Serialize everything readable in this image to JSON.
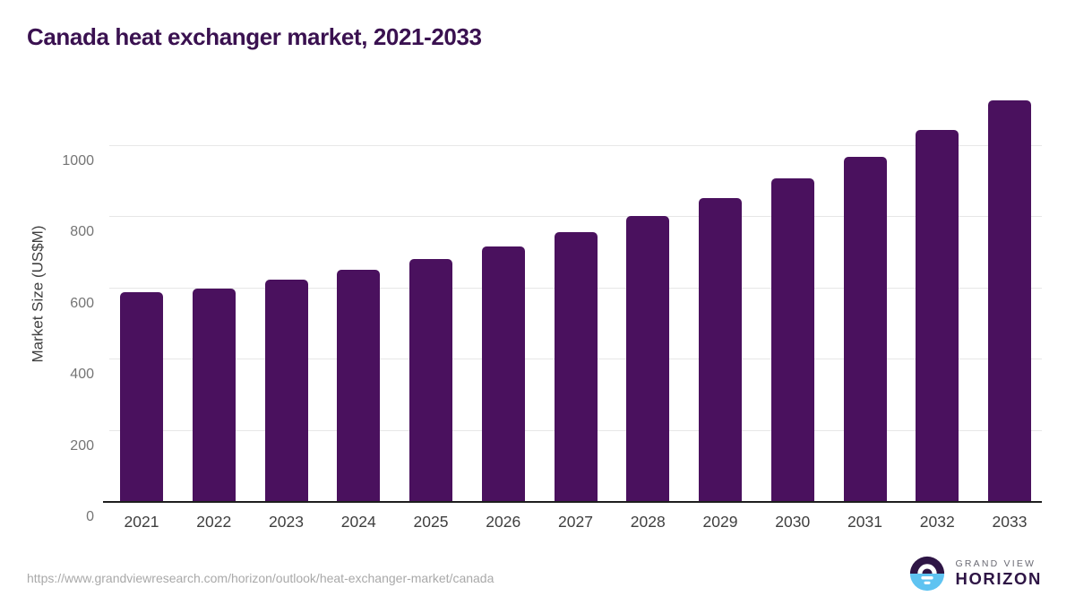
{
  "page": {
    "title": "Canada heat exchanger market, 2021-2033"
  },
  "chart_data": {
    "type": "bar",
    "title": "Canada heat exchanger market, 2021-2033",
    "xlabel": "",
    "ylabel": "Market Size (US$M)",
    "categories": [
      "2021",
      "2022",
      "2023",
      "2024",
      "2025",
      "2026",
      "2027",
      "2028",
      "2029",
      "2030",
      "2031",
      "2032",
      "2033"
    ],
    "values": [
      590,
      600,
      625,
      651,
      683,
      716,
      757,
      803,
      852,
      909,
      970,
      1045,
      1128
    ],
    "y_ticks": [
      0,
      200,
      400,
      600,
      800,
      1000
    ],
    "ylim": [
      0,
      1170
    ],
    "grid": "horizontal",
    "legend": "none",
    "bar_color": "#4a115e",
    "title_color": "#3a1150"
  },
  "footer": {
    "source_url": "https://www.grandviewresearch.com/horizon/outlook/heat-exchanger-market/canada",
    "logo": {
      "line1": "GRAND VIEW",
      "line2": "HORIZON",
      "icon": "horizon-sunrise-icon",
      "colors": {
        "icon_top": "#2e1545",
        "icon_bottom": "#5fc3f1",
        "wordmark": "#2e1545"
      }
    }
  }
}
